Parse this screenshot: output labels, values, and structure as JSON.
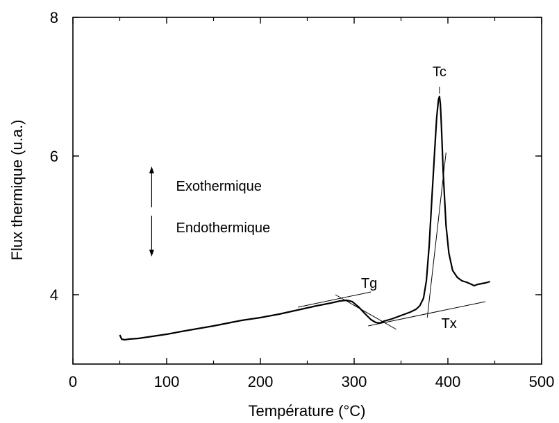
{
  "chart_data": {
    "type": "line",
    "title": "",
    "xlabel": "Température (°C)",
    "ylabel": "Flux thermique (u.a.)",
    "xlim": [
      0,
      500
    ],
    "ylim": [
      3,
      8
    ],
    "xticks": [
      0,
      100,
      200,
      300,
      400,
      500
    ],
    "yticks": [
      4,
      6,
      8
    ],
    "grid": false,
    "legend": "none",
    "series": [
      {
        "x": [
          50,
          52,
          55,
          60,
          70,
          80,
          100,
          120,
          150,
          180,
          200,
          220,
          240,
          260,
          275,
          285,
          292,
          298,
          305,
          312,
          318,
          323,
          327,
          332,
          340,
          350,
          360,
          366,
          370,
          374,
          377,
          380,
          383,
          386,
          388,
          390,
          391,
          392,
          393,
          395,
          398,
          401,
          405,
          410,
          415,
          420,
          425,
          428,
          432,
          436,
          440,
          445
        ],
        "y": [
          3.42,
          3.36,
          3.35,
          3.36,
          3.37,
          3.39,
          3.43,
          3.48,
          3.55,
          3.63,
          3.67,
          3.72,
          3.78,
          3.84,
          3.88,
          3.91,
          3.92,
          3.9,
          3.82,
          3.72,
          3.64,
          3.6,
          3.59,
          3.62,
          3.65,
          3.7,
          3.75,
          3.79,
          3.84,
          3.95,
          4.2,
          4.7,
          5.4,
          6.1,
          6.55,
          6.82,
          6.86,
          6.75,
          6.45,
          5.75,
          5.0,
          4.6,
          4.35,
          4.25,
          4.2,
          4.18,
          4.15,
          4.13,
          4.15,
          4.16,
          4.17,
          4.19
        ]
      }
    ],
    "annotations": [
      {
        "text": "Tc",
        "x": 391,
        "y": 7.15
      },
      {
        "text": "Tg",
        "x": 316,
        "y": 4.1
      },
      {
        "text": "Tx",
        "x": 393,
        "y": 3.52
      },
      {
        "text": "Exothermique",
        "x": 110,
        "y": 5.5
      },
      {
        "text": "Endothermique",
        "x": 110,
        "y": 4.9
      }
    ],
    "construction_lines": [
      {
        "name": "tg-baseline-tangent",
        "x1": 240,
        "y1": 3.82,
        "x2": 318,
        "y2": 4.04
      },
      {
        "name": "tg-step-tangent",
        "x1": 280,
        "y1": 4.0,
        "x2": 345,
        "y2": 3.5
      },
      {
        "name": "tx-baseline-tangent",
        "x1": 315,
        "y1": 3.55,
        "x2": 440,
        "y2": 3.9
      },
      {
        "name": "tx-onset-tangent",
        "x1": 378,
        "y1": 3.67,
        "x2": 398,
        "y2": 6.05
      },
      {
        "name": "tc-marker",
        "x1": 391,
        "y1": 6.9,
        "x2": 391,
        "y2": 7.0
      }
    ],
    "exo_endo_arrow": {
      "x": 84,
      "y_top": 5.85,
      "y_mid": 5.2,
      "y_bottom": 4.55
    }
  }
}
